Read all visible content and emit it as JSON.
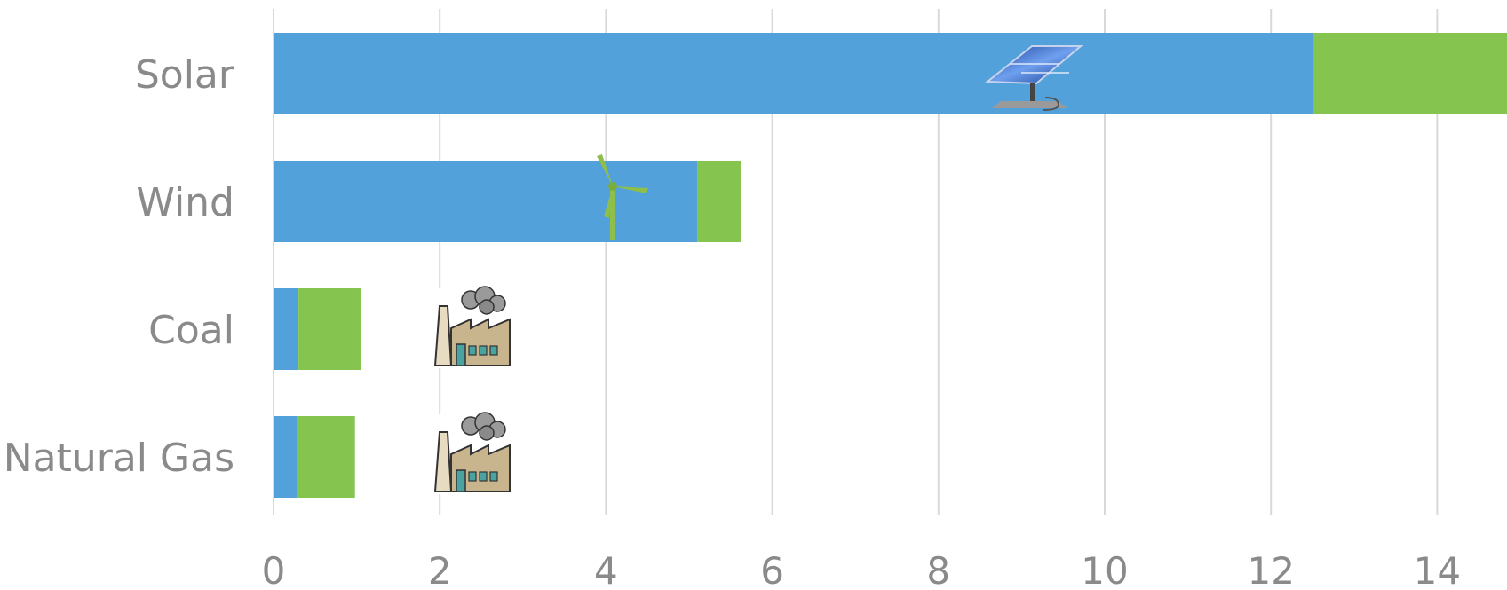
{
  "chart_data": {
    "type": "bar",
    "orientation": "horizontal",
    "stacked": true,
    "categories": [
      "Solar",
      "Wind",
      "Coal",
      "Natural Gas"
    ],
    "series": [
      {
        "values": [
          12.5,
          5.1,
          0.3,
          0.28
        ],
        "color": "#52a1db"
      },
      {
        "values": [
          2.5,
          0.52,
          0.75,
          0.7
        ],
        "color": "#84c44f"
      }
    ],
    "xlim": [
      0,
      15
    ],
    "xticks": [
      0,
      2,
      4,
      6,
      8,
      10,
      12,
      14
    ],
    "grid": true,
    "icons": [
      "solar-panel-icon",
      "wind-turbine-icon",
      "factory-icon",
      "factory-icon"
    ]
  }
}
